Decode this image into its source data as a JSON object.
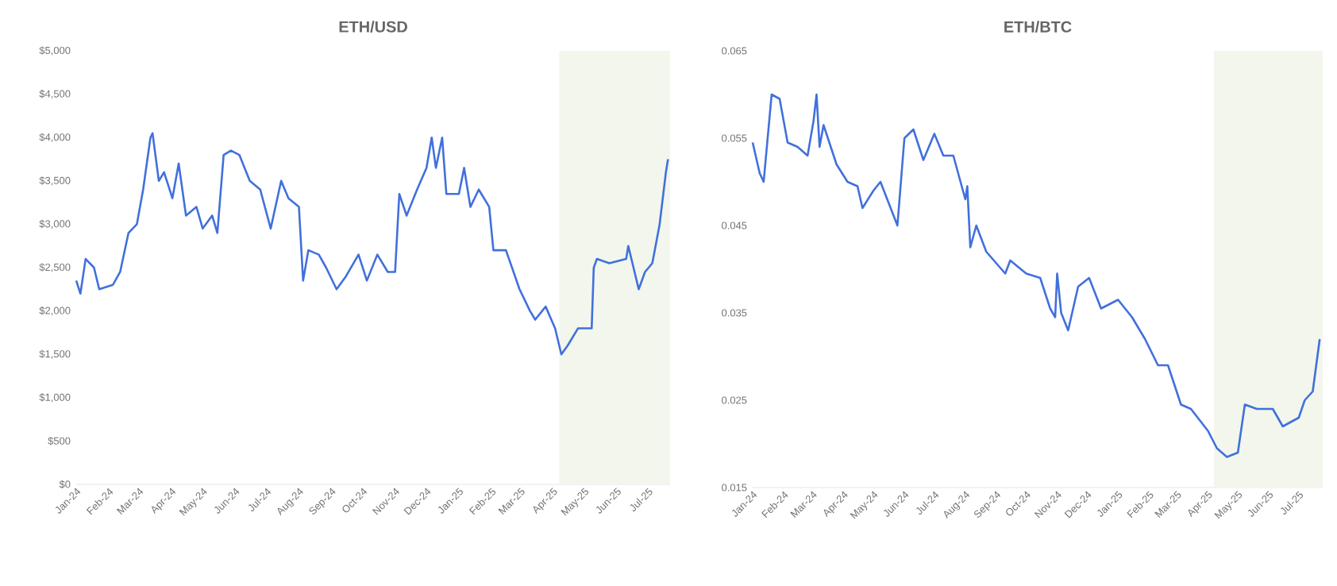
{
  "chart_data": [
    {
      "type": "line",
      "title": "ETH/USD",
      "x": [
        "2024-01-01",
        "2024-01-05",
        "2024-01-10",
        "2024-01-18",
        "2024-01-23",
        "2024-02-05",
        "2024-02-12",
        "2024-02-20",
        "2024-02-28",
        "2024-03-05",
        "2024-03-12",
        "2024-03-14",
        "2024-03-20",
        "2024-03-25",
        "2024-04-02",
        "2024-04-08",
        "2024-04-15",
        "2024-04-25",
        "2024-05-01",
        "2024-05-10",
        "2024-05-15",
        "2024-05-21",
        "2024-05-28",
        "2024-06-05",
        "2024-06-15",
        "2024-06-25",
        "2024-07-05",
        "2024-07-15",
        "2024-07-22",
        "2024-08-01",
        "2024-08-05",
        "2024-08-10",
        "2024-08-20",
        "2024-08-27",
        "2024-09-06",
        "2024-09-15",
        "2024-09-27",
        "2024-10-05",
        "2024-10-15",
        "2024-10-25",
        "2024-11-01",
        "2024-11-05",
        "2024-11-12",
        "2024-11-22",
        "2024-12-01",
        "2024-12-06",
        "2024-12-10",
        "2024-12-16",
        "2024-12-20",
        "2025-01-01",
        "2025-01-06",
        "2025-01-12",
        "2025-01-20",
        "2025-01-30",
        "2025-02-03",
        "2025-02-15",
        "2025-02-28",
        "2025-03-10",
        "2025-03-15",
        "2025-03-25",
        "2025-04-03",
        "2025-04-09",
        "2025-04-15",
        "2025-04-25",
        "2025-05-08",
        "2025-05-10",
        "2025-05-13",
        "2025-05-25",
        "2025-06-10",
        "2025-06-12",
        "2025-06-22",
        "2025-06-28",
        "2025-07-05",
        "2025-07-12",
        "2025-07-18",
        "2025-07-20"
      ],
      "series": [
        {
          "color": "#4170dc",
          "values": [
            2350,
            2200,
            2600,
            2500,
            2250,
            2300,
            2450,
            2900,
            3000,
            3400,
            4000,
            4050,
            3500,
            3600,
            3300,
            3700,
            3100,
            3200,
            2950,
            3100,
            2900,
            3800,
            3850,
            3800,
            3500,
            3400,
            2950,
            3500,
            3300,
            3200,
            2350,
            2700,
            2650,
            2500,
            2250,
            2400,
            2650,
            2350,
            2650,
            2450,
            2450,
            3350,
            3100,
            3400,
            3650,
            4000,
            3650,
            4000,
            3350,
            3350,
            3650,
            3200,
            3400,
            3200,
            2700,
            2700,
            2250,
            2000,
            1900,
            2050,
            1800,
            1500,
            1600,
            1800,
            1800,
            2500,
            2600,
            2550,
            2600,
            2750,
            2250,
            2450,
            2550,
            3000,
            3600,
            3750
          ]
        }
      ],
      "xlim": [
        "2024-01-01",
        "2025-07-22"
      ],
      "xticks": [
        {
          "value": "2024-01-01",
          "label": "Jan-24"
        },
        {
          "value": "2024-02-01",
          "label": "Feb-24"
        },
        {
          "value": "2024-03-01",
          "label": "Mar-24"
        },
        {
          "value": "2024-04-01",
          "label": "Apr-24"
        },
        {
          "value": "2024-05-01",
          "label": "May-24"
        },
        {
          "value": "2024-06-01",
          "label": "Jun-24"
        },
        {
          "value": "2024-07-01",
          "label": "Jul-24"
        },
        {
          "value": "2024-08-01",
          "label": "Aug-24"
        },
        {
          "value": "2024-09-01",
          "label": "Sep-24"
        },
        {
          "value": "2024-10-01",
          "label": "Oct-24"
        },
        {
          "value": "2024-11-01",
          "label": "Nov-24"
        },
        {
          "value": "2024-12-01",
          "label": "Dec-24"
        },
        {
          "value": "2025-01-01",
          "label": "Jan-25"
        },
        {
          "value": "2025-02-01",
          "label": "Feb-25"
        },
        {
          "value": "2025-03-01",
          "label": "Mar-25"
        },
        {
          "value": "2025-04-01",
          "label": "Apr-25"
        },
        {
          "value": "2025-05-01",
          "label": "May-25"
        },
        {
          "value": "2025-06-01",
          "label": "Jun-25"
        },
        {
          "value": "2025-07-01",
          "label": "Jul-25"
        }
      ],
      "ylim": [
        0,
        5000
      ],
      "yticks": [
        {
          "value": 0,
          "label": "$0"
        },
        {
          "value": 500,
          "label": "$500"
        },
        {
          "value": 1000,
          "label": "$1,000"
        },
        {
          "value": 1500,
          "label": "$1,500"
        },
        {
          "value": 2000,
          "label": "$2,000"
        },
        {
          "value": 2500,
          "label": "$2,500"
        },
        {
          "value": 3000,
          "label": "$3,000"
        },
        {
          "value": 3500,
          "label": "$3,500"
        },
        {
          "value": 4000,
          "label": "$4,000"
        },
        {
          "value": 4500,
          "label": "$4,500"
        },
        {
          "value": 5000,
          "label": "$5,000"
        }
      ],
      "bands": [
        {
          "axis": "x",
          "from": "2025-04-07",
          "to": "2025-07-22",
          "color": "#f2f6ec"
        }
      ]
    },
    {
      "type": "line",
      "title": "ETH/BTC",
      "x": [
        "2024-01-01",
        "2024-01-08",
        "2024-01-12",
        "2024-01-20",
        "2024-01-28",
        "2024-02-05",
        "2024-02-15",
        "2024-02-25",
        "2024-03-02",
        "2024-03-05",
        "2024-03-08",
        "2024-03-12",
        "2024-03-25",
        "2024-04-05",
        "2024-04-15",
        "2024-04-20",
        "2024-05-01",
        "2024-05-08",
        "2024-05-25",
        "2024-06-01",
        "2024-06-10",
        "2024-06-20",
        "2024-07-01",
        "2024-07-10",
        "2024-07-20",
        "2024-08-01",
        "2024-08-03",
        "2024-08-06",
        "2024-08-12",
        "2024-08-22",
        "2024-09-10",
        "2024-09-15",
        "2024-10-01",
        "2024-10-15",
        "2024-10-25",
        "2024-10-30",
        "2024-11-01",
        "2024-11-05",
        "2024-11-12",
        "2024-11-22",
        "2024-12-03",
        "2024-12-15",
        "2025-01-01",
        "2025-01-15",
        "2025-01-28",
        "2025-02-10",
        "2025-02-20",
        "2025-03-05",
        "2025-03-15",
        "2025-04-01",
        "2025-04-10",
        "2025-04-20",
        "2025-05-01",
        "2025-05-08",
        "2025-05-20",
        "2025-06-05",
        "2025-06-15",
        "2025-07-01",
        "2025-07-07",
        "2025-07-15",
        "2025-07-22"
      ],
      "series": [
        {
          "color": "#4170dc",
          "values": [
            0.0545,
            0.051,
            0.05,
            0.06,
            0.0595,
            0.0545,
            0.054,
            0.053,
            0.057,
            0.06,
            0.054,
            0.0565,
            0.052,
            0.05,
            0.0495,
            0.047,
            0.049,
            0.05,
            0.045,
            0.055,
            0.056,
            0.0525,
            0.0555,
            0.053,
            0.053,
            0.048,
            0.0495,
            0.0425,
            0.045,
            0.042,
            0.0395,
            0.041,
            0.0395,
            0.039,
            0.0355,
            0.0345,
            0.0395,
            0.035,
            0.033,
            0.038,
            0.039,
            0.0355,
            0.0365,
            0.0345,
            0.032,
            0.029,
            0.029,
            0.0245,
            0.024,
            0.0215,
            0.0195,
            0.0185,
            0.019,
            0.0245,
            0.024,
            0.024,
            0.022,
            0.023,
            0.025,
            0.026,
            0.032
          ]
        }
      ],
      "xlim": [
        "2024-01-01",
        "2025-07-25"
      ],
      "xticks": [
        {
          "value": "2024-01-01",
          "label": "Jan-24"
        },
        {
          "value": "2024-02-01",
          "label": "Feb-24"
        },
        {
          "value": "2024-03-01",
          "label": "Mar-24"
        },
        {
          "value": "2024-04-01",
          "label": "Apr-24"
        },
        {
          "value": "2024-05-01",
          "label": "May-24"
        },
        {
          "value": "2024-06-01",
          "label": "Jun-24"
        },
        {
          "value": "2024-07-01",
          "label": "Jul-24"
        },
        {
          "value": "2024-08-01",
          "label": "Aug-24"
        },
        {
          "value": "2024-09-01",
          "label": "Sep-24"
        },
        {
          "value": "2024-10-01",
          "label": "Oct-24"
        },
        {
          "value": "2024-11-01",
          "label": "Nov-24"
        },
        {
          "value": "2024-12-01",
          "label": "Dec-24"
        },
        {
          "value": "2025-01-01",
          "label": "Jan-25"
        },
        {
          "value": "2025-02-01",
          "label": "Feb-25"
        },
        {
          "value": "2025-03-01",
          "label": "Mar-25"
        },
        {
          "value": "2025-04-01",
          "label": "Apr-25"
        },
        {
          "value": "2025-05-01",
          "label": "May-25"
        },
        {
          "value": "2025-06-01",
          "label": "Jun-25"
        },
        {
          "value": "2025-07-01",
          "label": "Jul-25"
        }
      ],
      "ylim": [
        0.015,
        0.065
      ],
      "yticks": [
        0.015,
        0.025,
        0.035,
        0.045,
        0.055,
        0.065
      ],
      "bands": [
        {
          "axis": "x",
          "from": "2025-04-07",
          "to": "2025-07-25",
          "color": "#f2f6ec"
        }
      ]
    }
  ]
}
